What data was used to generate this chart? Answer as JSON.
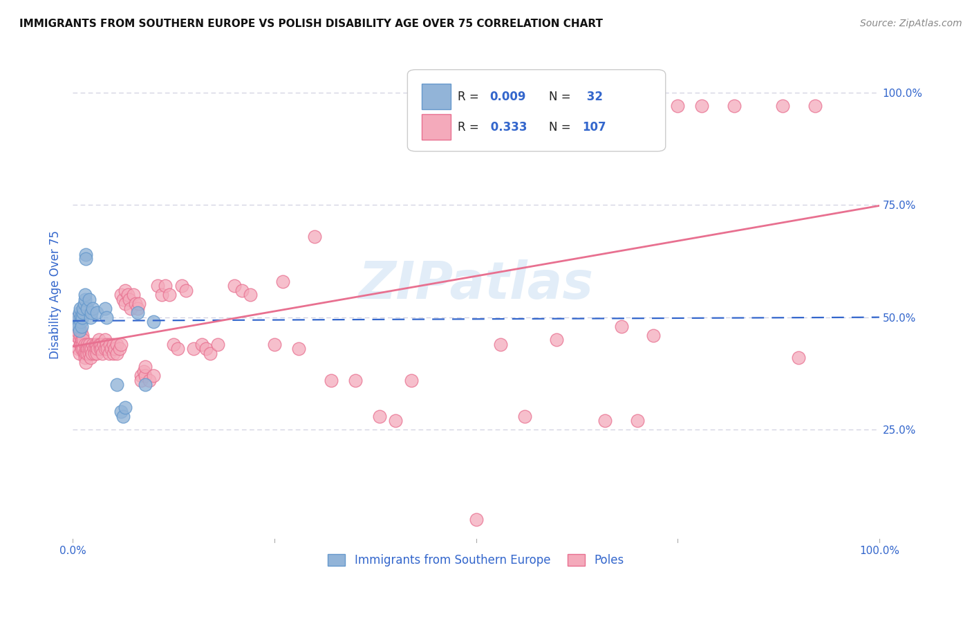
{
  "title": "IMMIGRANTS FROM SOUTHERN EUROPE VS POLISH DISABILITY AGE OVER 75 CORRELATION CHART",
  "source": "Source: ZipAtlas.com",
  "ylabel": "Disability Age Over 75",
  "ytick_labels": [
    "25.0%",
    "50.0%",
    "75.0%",
    "100.0%"
  ],
  "ytick_values": [
    0.25,
    0.5,
    0.75,
    1.0
  ],
  "xlim": [
    0.0,
    1.0
  ],
  "ylim": [
    0.0,
    1.1
  ],
  "watermark": "ZIPatlas",
  "color_blue": "#92B4D8",
  "color_blue_edge": "#6699CC",
  "color_pink": "#F4AABB",
  "color_pink_edge": "#E87090",
  "color_blue_text": "#3366CC",
  "legend_label1": "Immigrants from Southern Europe",
  "legend_label2": "Poles",
  "blue_points": [
    [
      0.005,
      0.49
    ],
    [
      0.006,
      0.5
    ],
    [
      0.007,
      0.48
    ],
    [
      0.008,
      0.51
    ],
    [
      0.008,
      0.47
    ],
    [
      0.009,
      0.52
    ],
    [
      0.01,
      0.5
    ],
    [
      0.01,
      0.49
    ],
    [
      0.011,
      0.48
    ],
    [
      0.012,
      0.5
    ],
    [
      0.013,
      0.51
    ],
    [
      0.013,
      0.52
    ],
    [
      0.014,
      0.53
    ],
    [
      0.015,
      0.54
    ],
    [
      0.015,
      0.55
    ],
    [
      0.016,
      0.64
    ],
    [
      0.016,
      0.63
    ],
    [
      0.018,
      0.52
    ],
    [
      0.02,
      0.54
    ],
    [
      0.022,
      0.5
    ],
    [
      0.023,
      0.51
    ],
    [
      0.025,
      0.52
    ],
    [
      0.03,
      0.51
    ],
    [
      0.04,
      0.52
    ],
    [
      0.042,
      0.5
    ],
    [
      0.055,
      0.35
    ],
    [
      0.06,
      0.29
    ],
    [
      0.062,
      0.28
    ],
    [
      0.065,
      0.3
    ],
    [
      0.08,
      0.51
    ],
    [
      0.09,
      0.35
    ],
    [
      0.1,
      0.49
    ]
  ],
  "pink_points": [
    [
      0.003,
      0.48
    ],
    [
      0.004,
      0.46
    ],
    [
      0.005,
      0.47
    ],
    [
      0.006,
      0.5
    ],
    [
      0.007,
      0.48
    ],
    [
      0.007,
      0.43
    ],
    [
      0.008,
      0.42
    ],
    [
      0.008,
      0.45
    ],
    [
      0.009,
      0.44
    ],
    [
      0.009,
      0.46
    ],
    [
      0.01,
      0.44
    ],
    [
      0.01,
      0.47
    ],
    [
      0.011,
      0.43
    ],
    [
      0.011,
      0.45
    ],
    [
      0.012,
      0.46
    ],
    [
      0.012,
      0.44
    ],
    [
      0.013,
      0.43
    ],
    [
      0.013,
      0.45
    ],
    [
      0.014,
      0.42
    ],
    [
      0.015,
      0.44
    ],
    [
      0.015,
      0.41
    ],
    [
      0.016,
      0.42
    ],
    [
      0.016,
      0.4
    ],
    [
      0.017,
      0.43
    ],
    [
      0.018,
      0.42
    ],
    [
      0.018,
      0.44
    ],
    [
      0.019,
      0.43
    ],
    [
      0.02,
      0.44
    ],
    [
      0.02,
      0.42
    ],
    [
      0.021,
      0.43
    ],
    [
      0.022,
      0.41
    ],
    [
      0.023,
      0.43
    ],
    [
      0.024,
      0.42
    ],
    [
      0.025,
      0.44
    ],
    [
      0.026,
      0.43
    ],
    [
      0.027,
      0.42
    ],
    [
      0.028,
      0.44
    ],
    [
      0.029,
      0.43
    ],
    [
      0.03,
      0.44
    ],
    [
      0.03,
      0.42
    ],
    [
      0.031,
      0.43
    ],
    [
      0.032,
      0.45
    ],
    [
      0.033,
      0.44
    ],
    [
      0.034,
      0.43
    ],
    [
      0.035,
      0.44
    ],
    [
      0.036,
      0.43
    ],
    [
      0.037,
      0.42
    ],
    [
      0.038,
      0.44
    ],
    [
      0.04,
      0.43
    ],
    [
      0.04,
      0.45
    ],
    [
      0.042,
      0.44
    ],
    [
      0.043,
      0.43
    ],
    [
      0.045,
      0.42
    ],
    [
      0.046,
      0.44
    ],
    [
      0.048,
      0.43
    ],
    [
      0.05,
      0.44
    ],
    [
      0.05,
      0.42
    ],
    [
      0.052,
      0.43
    ],
    [
      0.055,
      0.44
    ],
    [
      0.055,
      0.42
    ],
    [
      0.058,
      0.43
    ],
    [
      0.06,
      0.44
    ],
    [
      0.06,
      0.55
    ],
    [
      0.062,
      0.54
    ],
    [
      0.065,
      0.56
    ],
    [
      0.065,
      0.53
    ],
    [
      0.068,
      0.55
    ],
    [
      0.07,
      0.54
    ],
    [
      0.072,
      0.52
    ],
    [
      0.075,
      0.55
    ],
    [
      0.078,
      0.53
    ],
    [
      0.08,
      0.52
    ],
    [
      0.082,
      0.53
    ],
    [
      0.085,
      0.37
    ],
    [
      0.085,
      0.36
    ],
    [
      0.088,
      0.38
    ],
    [
      0.09,
      0.37
    ],
    [
      0.09,
      0.39
    ],
    [
      0.095,
      0.36
    ],
    [
      0.1,
      0.37
    ],
    [
      0.105,
      0.57
    ],
    [
      0.11,
      0.55
    ],
    [
      0.115,
      0.57
    ],
    [
      0.12,
      0.55
    ],
    [
      0.125,
      0.44
    ],
    [
      0.13,
      0.43
    ],
    [
      0.135,
      0.57
    ],
    [
      0.14,
      0.56
    ],
    [
      0.15,
      0.43
    ],
    [
      0.16,
      0.44
    ],
    [
      0.165,
      0.43
    ],
    [
      0.17,
      0.42
    ],
    [
      0.18,
      0.44
    ],
    [
      0.2,
      0.57
    ],
    [
      0.21,
      0.56
    ],
    [
      0.22,
      0.55
    ],
    [
      0.25,
      0.44
    ],
    [
      0.26,
      0.58
    ],
    [
      0.28,
      0.43
    ],
    [
      0.3,
      0.68
    ],
    [
      0.32,
      0.36
    ],
    [
      0.35,
      0.36
    ],
    [
      0.38,
      0.28
    ],
    [
      0.4,
      0.27
    ],
    [
      0.42,
      0.36
    ],
    [
      0.5,
      0.05
    ],
    [
      0.53,
      0.44
    ],
    [
      0.56,
      0.28
    ],
    [
      0.6,
      0.45
    ],
    [
      0.66,
      0.27
    ],
    [
      0.7,
      0.27
    ],
    [
      0.75,
      0.97
    ],
    [
      0.78,
      0.97
    ],
    [
      0.82,
      0.97
    ],
    [
      0.88,
      0.97
    ],
    [
      0.92,
      0.97
    ],
    [
      0.68,
      0.48
    ],
    [
      0.72,
      0.46
    ],
    [
      0.9,
      0.41
    ]
  ],
  "blue_line_x": [
    0.0,
    1.0
  ],
  "blue_line_y": [
    0.492,
    0.5
  ],
  "pink_line_x": [
    0.0,
    1.0
  ],
  "pink_line_y": [
    0.435,
    0.748
  ]
}
